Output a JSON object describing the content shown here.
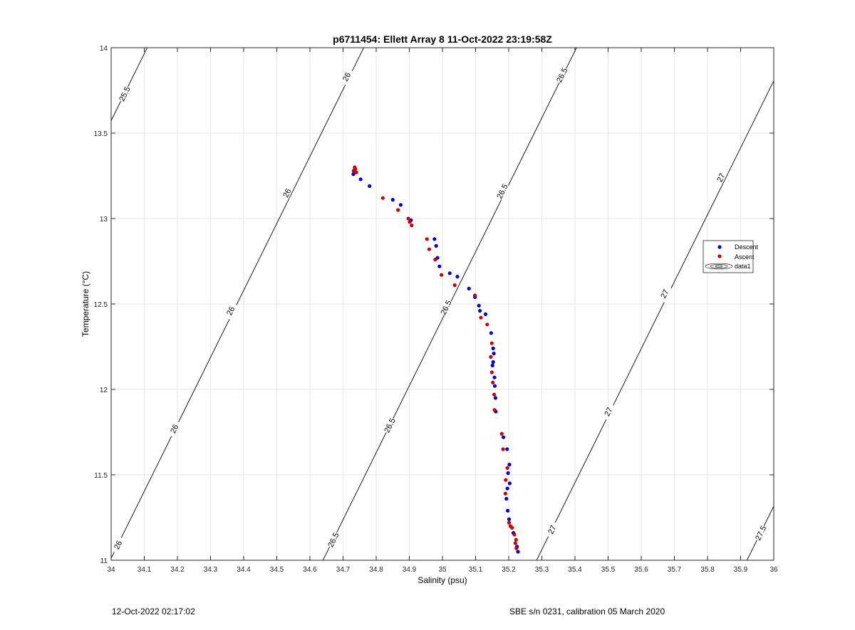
{
  "chart_data": {
    "type": "scatter",
    "title": "p6711454: Ellett Array 8 11-Oct-2022 23:19:58Z",
    "xlabel": "Salinity (psu)",
    "ylabel": "Temperature (°C)",
    "xlim": [
      34,
      36
    ],
    "ylim": [
      11,
      14
    ],
    "xticks": [
      34,
      34.1,
      34.2,
      34.3,
      34.4,
      34.5,
      34.6,
      34.7,
      34.8,
      34.9,
      35,
      35.1,
      35.2,
      35.3,
      35.4,
      35.5,
      35.6,
      35.7,
      35.8,
      35.9,
      36
    ],
    "xtick_labels": [
      "34",
      "34.1",
      "34.2",
      "34.3",
      "34.4",
      "34.5",
      "34.6",
      "34.7",
      "34.8",
      "34.9",
      "35",
      "35.1",
      "35.2",
      "35.3",
      "35.4",
      "35.5",
      "35.6",
      "35.7",
      "35.8",
      "35.9",
      "36"
    ],
    "yticks": [
      11,
      11.5,
      12,
      12.5,
      13,
      13.5,
      14
    ],
    "ytick_labels": [
      "11",
      "11.5",
      "12",
      "12.5",
      "13",
      "13.5",
      "14"
    ],
    "grid": true,
    "legend_position": "right",
    "series": [
      {
        "name": "Descent",
        "color": "#0000cc",
        "points": [
          [
            34.731,
            13.26
          ],
          [
            34.732,
            13.28
          ],
          [
            34.753,
            13.23
          ],
          [
            34.78,
            13.19
          ],
          [
            34.85,
            13.11
          ],
          [
            34.874,
            13.08
          ],
          [
            34.905,
            12.99
          ],
          [
            34.976,
            12.88
          ],
          [
            34.981,
            12.84
          ],
          [
            34.985,
            12.77
          ],
          [
            34.991,
            12.72
          ],
          [
            35.022,
            12.68
          ],
          [
            35.045,
            12.66
          ],
          [
            35.08,
            12.59
          ],
          [
            35.098,
            12.54
          ],
          [
            35.11,
            12.49
          ],
          [
            35.113,
            12.46
          ],
          [
            35.13,
            12.44
          ],
          [
            35.147,
            12.33
          ],
          [
            35.153,
            12.24
          ],
          [
            35.155,
            12.21
          ],
          [
            35.153,
            12.16
          ],
          [
            35.151,
            12.14
          ],
          [
            35.157,
            12.07
          ],
          [
            35.158,
            12.02
          ],
          [
            35.16,
            11.95
          ],
          [
            35.161,
            11.87
          ],
          [
            35.184,
            11.72
          ],
          [
            35.195,
            11.65
          ],
          [
            35.202,
            11.56
          ],
          [
            35.198,
            11.51
          ],
          [
            35.203,
            11.45
          ],
          [
            35.196,
            11.42
          ],
          [
            35.193,
            11.36
          ],
          [
            35.197,
            11.29
          ],
          [
            35.201,
            11.24
          ],
          [
            35.214,
            11.16
          ],
          [
            35.225,
            11.08
          ],
          [
            35.228,
            11.05
          ]
        ]
      },
      {
        "name": "Ascent",
        "color": "#cc0000",
        "points": [
          [
            34.735,
            13.3
          ],
          [
            34.737,
            13.29
          ],
          [
            34.733,
            13.28
          ],
          [
            34.74,
            13.27
          ],
          [
            34.82,
            13.12
          ],
          [
            34.866,
            13.05
          ],
          [
            34.897,
            13.0
          ],
          [
            34.901,
            12.98
          ],
          [
            34.907,
            12.96
          ],
          [
            34.953,
            12.88
          ],
          [
            34.96,
            12.82
          ],
          [
            34.978,
            12.76
          ],
          [
            34.997,
            12.67
          ],
          [
            35.037,
            12.61
          ],
          [
            35.098,
            12.55
          ],
          [
            35.116,
            12.42
          ],
          [
            35.135,
            12.38
          ],
          [
            35.149,
            12.27
          ],
          [
            35.146,
            12.19
          ],
          [
            35.149,
            12.1
          ],
          [
            35.152,
            12.04
          ],
          [
            35.156,
            11.97
          ],
          [
            35.157,
            11.88
          ],
          [
            35.179,
            11.74
          ],
          [
            35.183,
            11.65
          ],
          [
            35.196,
            11.54
          ],
          [
            35.191,
            11.47
          ],
          [
            35.19,
            11.39
          ],
          [
            35.201,
            11.22
          ],
          [
            35.205,
            11.2
          ],
          [
            35.21,
            11.19
          ],
          [
            35.217,
            11.15
          ],
          [
            35.222,
            11.12
          ],
          [
            35.22,
            11.1
          ],
          [
            35.223,
            11.07
          ]
        ]
      }
    ],
    "contours": [
      {
        "level": "25.5",
        "labels_at": [
          [
            34.04,
            13.73
          ]
        ]
      },
      {
        "level": "26",
        "labels_at": [
          [
            34.02,
            11.09
          ],
          [
            34.19,
            11.77
          ],
          [
            34.36,
            12.46
          ],
          [
            34.53,
            13.15
          ],
          [
            34.71,
            13.83
          ]
        ]
      },
      {
        "level": "26.5",
        "labels_at": [
          [
            34.67,
            11.12
          ],
          [
            34.84,
            11.79
          ],
          [
            35.01,
            12.48
          ],
          [
            35.18,
            13.16
          ],
          [
            35.36,
            13.84
          ]
        ]
      },
      {
        "level": "27",
        "labels_at": [
          [
            35.33,
            11.18
          ],
          [
            35.5,
            11.87
          ],
          [
            35.67,
            12.56
          ],
          [
            35.84,
            13.24
          ]
        ]
      },
      {
        "level": "27.5",
        "labels_at": [
          [
            35.96,
            11.16
          ]
        ]
      }
    ],
    "legend": [
      "Descent",
      "Ascent",
      "data1"
    ]
  },
  "footer": {
    "left": "12-Oct-2022 02:17:02",
    "right": "SBE s/n 0231, calibration 05 March 2020"
  }
}
